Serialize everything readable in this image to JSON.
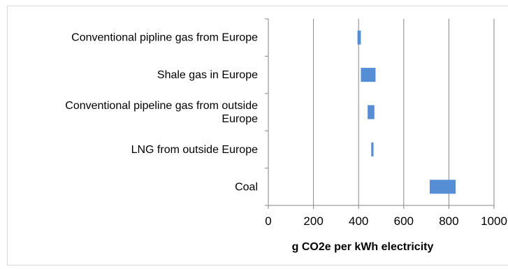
{
  "chart_data": {
    "type": "bar",
    "orientation": "horizontal-range",
    "categories": [
      [
        "Conventional pipline gas from Europe"
      ],
      [
        "Shale gas in Europe"
      ],
      [
        "Conventional pipeline gas from outside",
        "Europe"
      ],
      [
        "LNG from outside Europe"
      ],
      [
        "Coal"
      ]
    ],
    "series": [
      {
        "ranges": [
          [
            395,
            410
          ],
          [
            410,
            475
          ],
          [
            440,
            470
          ],
          [
            456,
            466
          ],
          [
            715,
            830
          ]
        ]
      }
    ],
    "xlabel": "g CO2e per kWh electricity",
    "xlim": [
      0,
      1000
    ],
    "xticks": [
      "0",
      "200",
      "400",
      "600",
      "800",
      "1000"
    ],
    "grid": "vertical",
    "bar_color": "#558ed5",
    "grid_color": "#868686"
  }
}
